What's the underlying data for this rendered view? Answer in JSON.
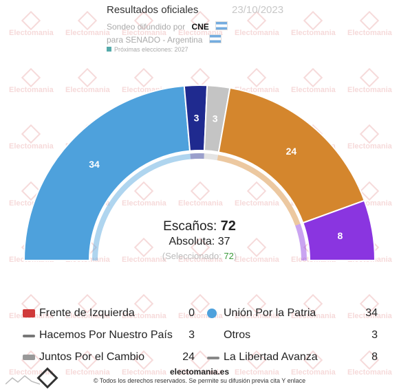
{
  "header": {
    "title": "Resultados oficiales",
    "date": "23/10/2023",
    "source_prefix": "Sondeo difundido por",
    "source": "CNE",
    "scope": "para SENADO - Argentina",
    "next": "Próximas elecciones: 2027"
  },
  "watermark": "Electomania",
  "center": {
    "escanos_label": "Escaños:",
    "escanos_value": "72",
    "absoluta_label": "Absoluta:",
    "absoluta_value": "37",
    "selec_label": "(Seleccionado:",
    "selec_value": "72",
    "selec_close": ")"
  },
  "chart_data": {
    "type": "pie",
    "variant": "parliament-hemicycle",
    "total": 72,
    "series": [
      {
        "name": "Unión Por la Patria",
        "value": 34,
        "color": "#4ea1dc"
      },
      {
        "name": "Frente de Izquierda",
        "value": 0,
        "color": "#e03030"
      },
      {
        "name": "Hacemos Por Nuestro País",
        "value": 3,
        "color": "#1f2a8f"
      },
      {
        "name": "Otros",
        "value": 3,
        "color": "#c4c4c4"
      },
      {
        "name": "Juntos Por el Cambio",
        "value": 24,
        "color": "#d4862d"
      },
      {
        "name": "La Libertad Avanza",
        "value": 8,
        "color": "#8a35e0"
      }
    ]
  },
  "legend": [
    {
      "label": "Frente de Izquierda",
      "value": "0",
      "color": "#d03a3a"
    },
    {
      "label": "Unión Por la Patria",
      "value": "34",
      "color": "#4ea1dc"
    },
    {
      "label": "Hacemos Por Nuestro País",
      "value": "3",
      "color": "#555555"
    },
    {
      "label": "Otros",
      "value": "3",
      "color": "#ffffff"
    },
    {
      "label": "Juntos Por el Cambio",
      "value": "24",
      "color": "#777777"
    },
    {
      "label": "La Libertad Avanza",
      "value": "8",
      "color": "#888888"
    }
  ],
  "footer": {
    "site": "electomania.es",
    "copyright": "© Todos los derechos reservados. Se permite su difusión previa cita Y enlace"
  }
}
